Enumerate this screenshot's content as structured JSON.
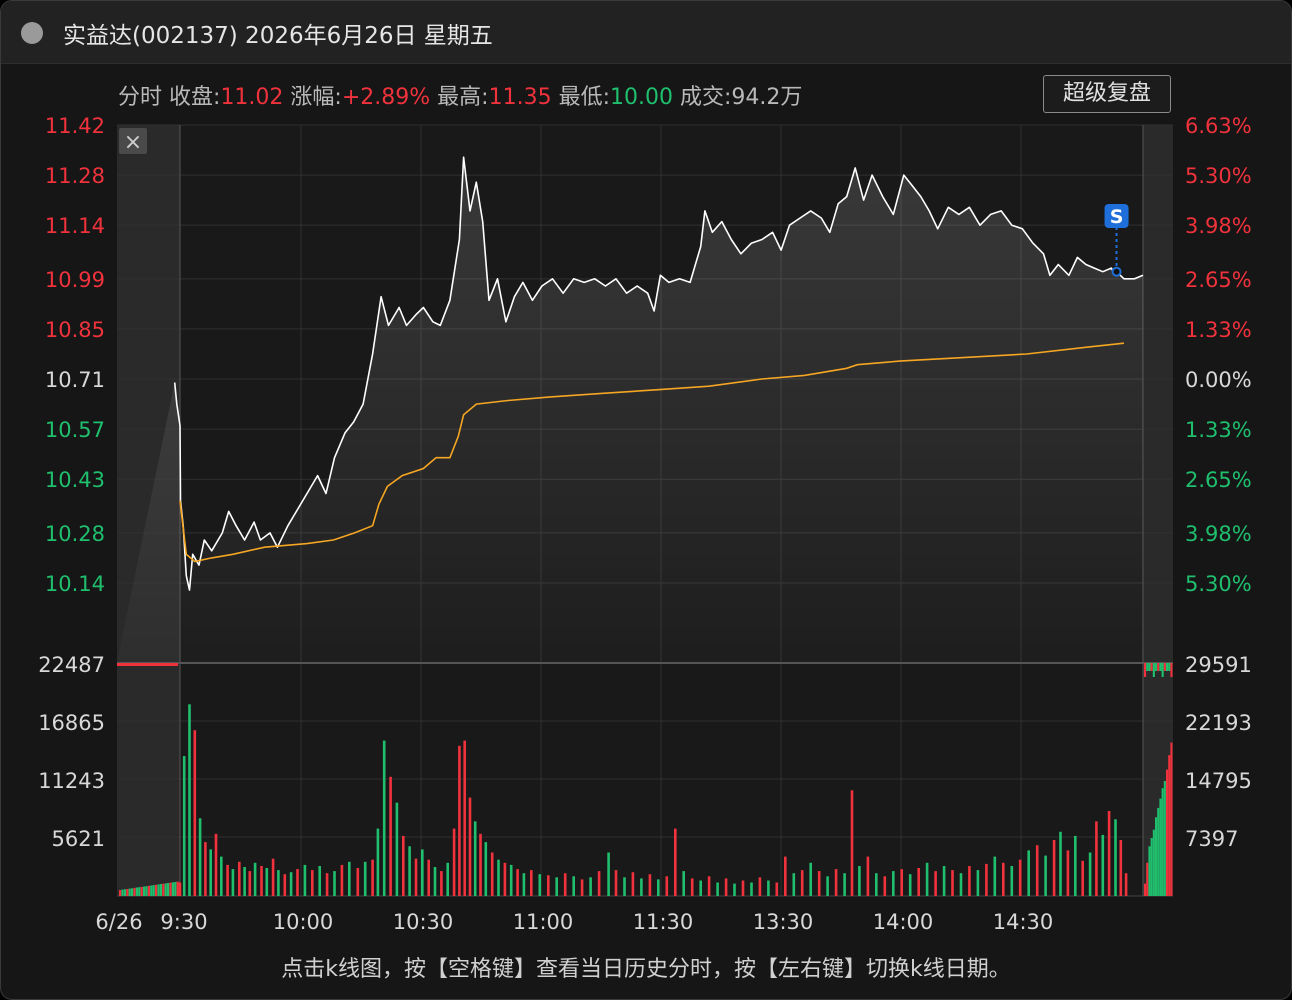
{
  "window": {
    "title": "实益达(002137) 2026年6月26日 星期五",
    "close_button": "×",
    "super_replay_button": "超级复盘"
  },
  "summary": {
    "mode": "分时",
    "close_label": "收盘:",
    "close_value": "11.02",
    "change_label": "涨幅:",
    "change_value": "+2.89%",
    "high_label": "最高:",
    "high_value": "11.35",
    "low_label": "最低:",
    "low_value": "10.00",
    "volume_label": "成交:",
    "volume_value": "94.2万"
  },
  "footer_hint": "点击k线图，按【空格键】查看当日历史分时，按【左右键】切换k线日期。",
  "colors": {
    "up": "#f0323c",
    "down": "#1fbf6e",
    "price_line": "#ffffff",
    "avg_line": "#f5a623",
    "neutral_text": "#d8d8d8",
    "marker": "#1e6fd9"
  },
  "chart_data": {
    "type": "line",
    "x_tick_labels": [
      "6/26",
      "9:30",
      "10:00",
      "10:30",
      "11:00",
      "11:30",
      "13:30",
      "14:00",
      "14:30"
    ],
    "price_axis": {
      "ylim": [
        10.07,
        11.42
      ],
      "left_ticks": [
        {
          "label": "11.42",
          "value": 11.42,
          "tone": "up"
        },
        {
          "label": "11.28",
          "value": 11.28,
          "tone": "up"
        },
        {
          "label": "11.14",
          "value": 11.14,
          "tone": "up"
        },
        {
          "label": "10.99",
          "value": 10.99,
          "tone": "up"
        },
        {
          "label": "10.85",
          "value": 10.85,
          "tone": "up"
        },
        {
          "label": "10.71",
          "value": 10.71,
          "tone": "neutral"
        },
        {
          "label": "10.57",
          "value": 10.57,
          "tone": "down"
        },
        {
          "label": "10.43",
          "value": 10.43,
          "tone": "down"
        },
        {
          "label": "10.28",
          "value": 10.28,
          "tone": "down"
        },
        {
          "label": "10.14",
          "value": 10.14,
          "tone": "down"
        }
      ],
      "right_ticks": [
        {
          "label": "6.63%",
          "tone": "up"
        },
        {
          "label": "5.30%",
          "tone": "up"
        },
        {
          "label": "3.98%",
          "tone": "up"
        },
        {
          "label": "2.65%",
          "tone": "up"
        },
        {
          "label": "1.33%",
          "tone": "up"
        },
        {
          "label": "0.00%",
          "tone": "neutral"
        },
        {
          "label": "1.33%",
          "tone": "down"
        },
        {
          "label": "2.65%",
          "tone": "down"
        },
        {
          "label": "3.98%",
          "tone": "down"
        },
        {
          "label": "5.30%",
          "tone": "down"
        }
      ]
    },
    "volume_axis": {
      "ylim": [
        0,
        22487
      ],
      "left_ticks": [
        "22487",
        "16865",
        "11243",
        "5621"
      ],
      "right_ticks": [
        "29591",
        "22193",
        "14795",
        "7397"
      ]
    },
    "price_series": [
      [
        -0.5,
        10.7
      ],
      [
        -0.3,
        10.64
      ],
      [
        0,
        10.58
      ],
      [
        0.05,
        10.37
      ],
      [
        0.3,
        10.3
      ],
      [
        0.6,
        10.16
      ],
      [
        0.9,
        10.12
      ],
      [
        1.2,
        10.22
      ],
      [
        1.8,
        10.19
      ],
      [
        2.3,
        10.26
      ],
      [
        3.0,
        10.23
      ],
      [
        4.0,
        10.28
      ],
      [
        4.6,
        10.34
      ],
      [
        5.3,
        10.3
      ],
      [
        6.1,
        10.26
      ],
      [
        7.0,
        10.31
      ],
      [
        7.6,
        10.26
      ],
      [
        8.5,
        10.28
      ],
      [
        9.2,
        10.24
      ],
      [
        10.2,
        10.3
      ],
      [
        11.0,
        10.34
      ],
      [
        12.0,
        10.39
      ],
      [
        13.0,
        10.44
      ],
      [
        13.8,
        10.39
      ],
      [
        14.6,
        10.49
      ],
      [
        15.6,
        10.56
      ],
      [
        16.4,
        10.59
      ],
      [
        17.3,
        10.64
      ],
      [
        18.2,
        10.78
      ],
      [
        19.0,
        10.94
      ],
      [
        19.7,
        10.86
      ],
      [
        20.7,
        10.91
      ],
      [
        21.4,
        10.86
      ],
      [
        22.3,
        10.89
      ],
      [
        23.0,
        10.91
      ],
      [
        23.9,
        10.87
      ],
      [
        24.6,
        10.86
      ],
      [
        25.5,
        10.93
      ],
      [
        26.4,
        11.1
      ],
      [
        26.8,
        11.33
      ],
      [
        27.4,
        11.18
      ],
      [
        28.0,
        11.26
      ],
      [
        28.6,
        11.15
      ],
      [
        29.2,
        10.93
      ],
      [
        30.0,
        10.99
      ],
      [
        30.8,
        10.87
      ],
      [
        31.6,
        10.94
      ],
      [
        32.4,
        10.98
      ],
      [
        33.3,
        10.93
      ],
      [
        34.2,
        10.97
      ],
      [
        35.2,
        10.99
      ],
      [
        36.2,
        10.95
      ],
      [
        37.2,
        10.99
      ],
      [
        38.2,
        10.98
      ],
      [
        39.2,
        10.99
      ],
      [
        40.2,
        10.97
      ],
      [
        41.2,
        10.99
      ],
      [
        42.2,
        10.95
      ],
      [
        43.2,
        10.97
      ],
      [
        44.2,
        10.95
      ],
      [
        44.8,
        10.9
      ],
      [
        45.4,
        11.0
      ],
      [
        46.2,
        10.98
      ],
      [
        47.2,
        10.99
      ],
      [
        48.2,
        10.98
      ],
      [
        49.2,
        11.08
      ],
      [
        49.6,
        11.18
      ],
      [
        50.3,
        11.12
      ],
      [
        51.2,
        11.15
      ],
      [
        52.1,
        11.1
      ],
      [
        53.0,
        11.06
      ],
      [
        54.0,
        11.09
      ],
      [
        55.0,
        11.1
      ],
      [
        56.0,
        11.12
      ],
      [
        56.8,
        11.07
      ],
      [
        57.6,
        11.14
      ],
      [
        58.6,
        11.16
      ],
      [
        59.6,
        11.18
      ],
      [
        60.6,
        11.16
      ],
      [
        61.4,
        11.12
      ],
      [
        62.2,
        11.2
      ],
      [
        63.0,
        11.22
      ],
      [
        63.8,
        11.3
      ],
      [
        64.6,
        11.21
      ],
      [
        65.4,
        11.28
      ],
      [
        66.4,
        11.22
      ],
      [
        67.4,
        11.17
      ],
      [
        68.4,
        11.28
      ],
      [
        69.2,
        11.25
      ],
      [
        70.0,
        11.22
      ],
      [
        70.8,
        11.18
      ],
      [
        71.6,
        11.13
      ],
      [
        72.6,
        11.19
      ],
      [
        73.6,
        11.17
      ],
      [
        74.6,
        11.19
      ],
      [
        75.6,
        11.14
      ],
      [
        76.6,
        11.17
      ],
      [
        77.6,
        11.18
      ],
      [
        78.6,
        11.14
      ],
      [
        79.6,
        11.13
      ],
      [
        80.6,
        11.09
      ],
      [
        81.6,
        11.06
      ],
      [
        82.2,
        11.0
      ],
      [
        83.0,
        11.03
      ],
      [
        84.0,
        11.0
      ],
      [
        84.8,
        11.05
      ],
      [
        85.6,
        11.03
      ],
      [
        86.4,
        11.02
      ],
      [
        87.2,
        11.01
      ],
      [
        88.0,
        11.02
      ],
      [
        88.4,
        11.0
      ],
      [
        88.5,
        11.01
      ],
      [
        89.2,
        10.99
      ],
      [
        90.2,
        10.99
      ],
      [
        91.0,
        11.0
      ]
    ],
    "avg_series": [
      [
        0,
        10.37
      ],
      [
        0.6,
        10.22
      ],
      [
        1.4,
        10.2
      ],
      [
        3,
        10.21
      ],
      [
        5,
        10.22
      ],
      [
        8,
        10.24
      ],
      [
        12,
        10.25
      ],
      [
        14.5,
        10.26
      ],
      [
        16.5,
        10.28
      ],
      [
        18.2,
        10.3
      ],
      [
        18.8,
        10.36
      ],
      [
        19.6,
        10.41
      ],
      [
        21,
        10.44
      ],
      [
        23,
        10.46
      ],
      [
        24.2,
        10.49
      ],
      [
        25.5,
        10.49
      ],
      [
        26.3,
        10.55
      ],
      [
        26.8,
        10.61
      ],
      [
        28,
        10.64
      ],
      [
        31,
        10.65
      ],
      [
        35,
        10.66
      ],
      [
        40,
        10.67
      ],
      [
        45,
        10.68
      ],
      [
        50,
        10.69
      ],
      [
        55,
        10.71
      ],
      [
        59,
        10.72
      ],
      [
        63,
        10.74
      ],
      [
        64,
        10.75
      ],
      [
        68,
        10.76
      ],
      [
        74,
        10.77
      ],
      [
        80,
        10.78
      ],
      [
        86,
        10.8
      ],
      [
        89.2,
        10.81
      ]
    ],
    "volume_bars": [
      [
        0,
        1300,
        "u"
      ],
      [
        0.4,
        13500,
        "d"
      ],
      [
        0.9,
        18500,
        "d"
      ],
      [
        1.4,
        16000,
        "u"
      ],
      [
        1.9,
        7500,
        "d"
      ],
      [
        2.4,
        5200,
        "u"
      ],
      [
        2.9,
        4500,
        "d"
      ],
      [
        3.4,
        6000,
        "u"
      ],
      [
        3.9,
        3800,
        "d"
      ],
      [
        4.5,
        3000,
        "u"
      ],
      [
        5.0,
        2600,
        "d"
      ],
      [
        5.6,
        3300,
        "u"
      ],
      [
        6.1,
        2800,
        "d"
      ],
      [
        6.6,
        2400,
        "u"
      ],
      [
        7.1,
        3200,
        "d"
      ],
      [
        7.7,
        2900,
        "u"
      ],
      [
        8.2,
        2700,
        "d"
      ],
      [
        8.8,
        3600,
        "u"
      ],
      [
        9.3,
        2500,
        "d"
      ],
      [
        9.9,
        2100,
        "u"
      ],
      [
        10.5,
        2300,
        "d"
      ],
      [
        11.1,
        2600,
        "u"
      ],
      [
        11.8,
        3000,
        "d"
      ],
      [
        12.5,
        2500,
        "u"
      ],
      [
        13.2,
        2900,
        "d"
      ],
      [
        13.9,
        2200,
        "u"
      ],
      [
        14.6,
        2400,
        "d"
      ],
      [
        15.3,
        3000,
        "u"
      ],
      [
        16.0,
        3300,
        "d"
      ],
      [
        16.8,
        2700,
        "u"
      ],
      [
        17.5,
        3300,
        "d"
      ],
      [
        18.2,
        3500,
        "u"
      ],
      [
        18.7,
        6500,
        "d"
      ],
      [
        19.3,
        15000,
        "d"
      ],
      [
        19.9,
        11500,
        "u"
      ],
      [
        20.5,
        9000,
        "d"
      ],
      [
        21.1,
        5800,
        "u"
      ],
      [
        21.7,
        4800,
        "d"
      ],
      [
        22.3,
        3600,
        "u"
      ],
      [
        22.9,
        4500,
        "d"
      ],
      [
        23.5,
        3500,
        "u"
      ],
      [
        24.1,
        2800,
        "d"
      ],
      [
        24.7,
        2400,
        "u"
      ],
      [
        25.3,
        3200,
        "d"
      ],
      [
        25.9,
        6500,
        "u"
      ],
      [
        26.4,
        14500,
        "u"
      ],
      [
        26.9,
        15000,
        "u"
      ],
      [
        27.4,
        9500,
        "u"
      ],
      [
        27.9,
        7200,
        "d"
      ],
      [
        28.4,
        6000,
        "u"
      ],
      [
        28.9,
        5200,
        "d"
      ],
      [
        29.5,
        4200,
        "u"
      ],
      [
        30.1,
        3500,
        "d"
      ],
      [
        30.7,
        3200,
        "u"
      ],
      [
        31.3,
        3000,
        "d"
      ],
      [
        31.9,
        2600,
        "u"
      ],
      [
        32.5,
        2200,
        "d"
      ],
      [
        33.2,
        2500,
        "u"
      ],
      [
        34.0,
        2100,
        "d"
      ],
      [
        34.8,
        2000,
        "u"
      ],
      [
        35.6,
        1800,
        "d"
      ],
      [
        36.4,
        2200,
        "u"
      ],
      [
        37.2,
        1900,
        "d"
      ],
      [
        38.0,
        1600,
        "u"
      ],
      [
        38.8,
        1800,
        "d"
      ],
      [
        39.6,
        2400,
        "u"
      ],
      [
        40.5,
        4200,
        "d"
      ],
      [
        41.2,
        2500,
        "u"
      ],
      [
        42.0,
        1800,
        "d"
      ],
      [
        42.8,
        2300,
        "u"
      ],
      [
        43.6,
        1700,
        "d"
      ],
      [
        44.4,
        2100,
        "u"
      ],
      [
        45.2,
        1600,
        "d"
      ],
      [
        46.0,
        1900,
        "u"
      ],
      [
        46.8,
        6500,
        "u"
      ],
      [
        47.6,
        2400,
        "d"
      ],
      [
        48.4,
        1700,
        "u"
      ],
      [
        49.2,
        1500,
        "d"
      ],
      [
        50.0,
        1900,
        "u"
      ],
      [
        50.8,
        1300,
        "d"
      ],
      [
        51.6,
        1700,
        "u"
      ],
      [
        52.4,
        1200,
        "d"
      ],
      [
        53.2,
        1500,
        "u"
      ],
      [
        54.0,
        1300,
        "d"
      ],
      [
        54.8,
        1800,
        "u"
      ],
      [
        55.6,
        1500,
        "d"
      ],
      [
        56.4,
        1300,
        "u"
      ],
      [
        57.2,
        3800,
        "u"
      ],
      [
        58.0,
        2200,
        "d"
      ],
      [
        58.8,
        2500,
        "u"
      ],
      [
        59.6,
        3200,
        "d"
      ],
      [
        60.4,
        2400,
        "u"
      ],
      [
        61.2,
        1900,
        "d"
      ],
      [
        62.0,
        2600,
        "u"
      ],
      [
        62.8,
        2200,
        "d"
      ],
      [
        63.5,
        10200,
        "u"
      ],
      [
        64.2,
        2900,
        "d"
      ],
      [
        65.0,
        3800,
        "u"
      ],
      [
        65.8,
        2200,
        "d"
      ],
      [
        66.6,
        1900,
        "u"
      ],
      [
        67.4,
        2400,
        "d"
      ],
      [
        68.2,
        2600,
        "u"
      ],
      [
        69.0,
        2100,
        "d"
      ],
      [
        69.8,
        2700,
        "u"
      ],
      [
        70.6,
        3200,
        "d"
      ],
      [
        71.4,
        2400,
        "u"
      ],
      [
        72.2,
        2900,
        "d"
      ],
      [
        73.0,
        2500,
        "u"
      ],
      [
        73.8,
        2200,
        "d"
      ],
      [
        74.6,
        2900,
        "u"
      ],
      [
        75.4,
        2500,
        "d"
      ],
      [
        76.2,
        3100,
        "u"
      ],
      [
        77.0,
        3800,
        "d"
      ],
      [
        77.8,
        3200,
        "u"
      ],
      [
        78.6,
        2900,
        "d"
      ],
      [
        79.4,
        3500,
        "u"
      ],
      [
        80.2,
        4400,
        "d"
      ],
      [
        81.0,
        4900,
        "u"
      ],
      [
        81.8,
        3900,
        "d"
      ],
      [
        82.6,
        5400,
        "u"
      ],
      [
        83.2,
        6200,
        "d"
      ],
      [
        83.9,
        4400,
        "u"
      ],
      [
        84.6,
        5800,
        "d"
      ],
      [
        85.3,
        3400,
        "u"
      ],
      [
        86.0,
        4200,
        "d"
      ],
      [
        86.6,
        7200,
        "u"
      ],
      [
        87.2,
        5900,
        "d"
      ],
      [
        87.8,
        8200,
        "u"
      ],
      [
        88.4,
        7400,
        "d"
      ],
      [
        88.9,
        5400,
        "u"
      ],
      [
        89.4,
        2200,
        "u"
      ]
    ]
  }
}
